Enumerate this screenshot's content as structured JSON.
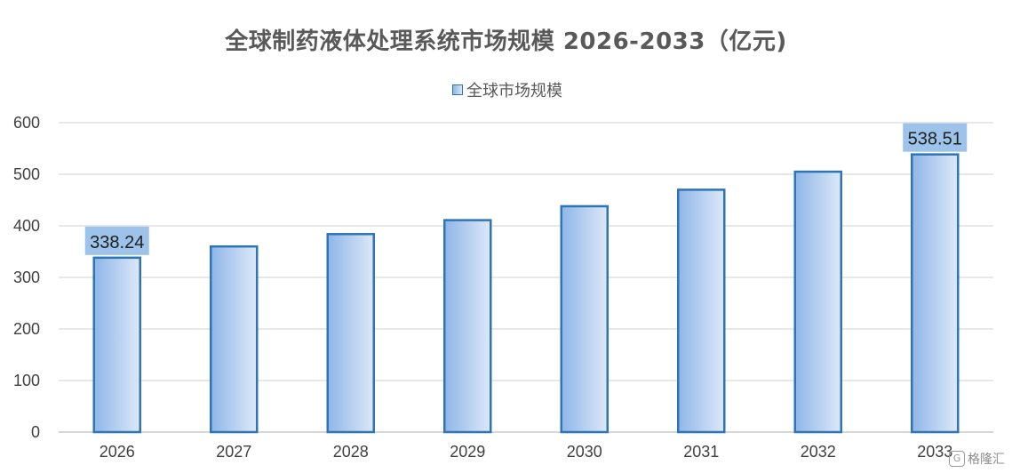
{
  "chart_data": {
    "type": "bar",
    "title": "全球制药液体处理系统市场规模 2026-2033（亿元)",
    "categories": [
      "2026",
      "2027",
      "2028",
      "2029",
      "2030",
      "2031",
      "2032",
      "2033"
    ],
    "series": [
      {
        "name": "全球市场规模",
        "values": [
          338.24,
          360,
          384,
          411,
          438,
          470,
          505,
          538.51
        ]
      }
    ],
    "data_labels": [
      {
        "index": 0,
        "text": "338.24"
      },
      {
        "index": 7,
        "text": "538.51"
      }
    ],
    "yticks": [
      0,
      100,
      200,
      300,
      400,
      500,
      600
    ],
    "ylim": [
      0,
      600
    ],
    "xlabel": "",
    "ylabel": "",
    "grid": true,
    "legend_position": "top-center",
    "colors": {
      "bar_fill_start": "#8fb6e8",
      "bar_fill_end": "#dde8f8",
      "bar_border": "#2e75b6",
      "label_bg": "#9ec3ea",
      "grid": "#d9d9d9"
    }
  },
  "watermark": {
    "icon": "gelonghui-logo-icon",
    "text": "格隆汇"
  }
}
